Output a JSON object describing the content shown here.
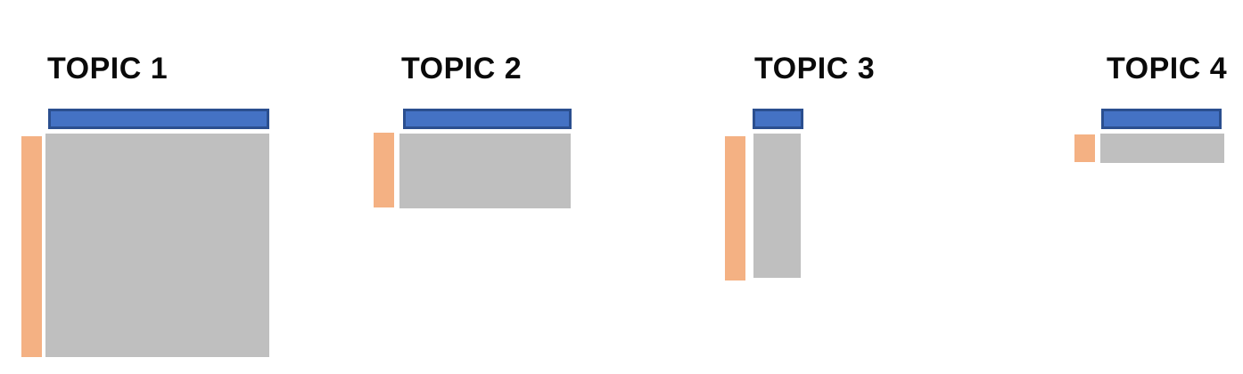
{
  "colors": {
    "header_bar": "#4472c4",
    "header_bar_border": "#2b4f8f",
    "row_bar": "#f4b183",
    "body_block": "#bfbfbf",
    "title_text": "#0a0a0a",
    "background": "#ffffff"
  },
  "topics": [
    {
      "title": "TOPIC 1"
    },
    {
      "title": "TOPIC 2"
    },
    {
      "title": "TOPIC 3"
    },
    {
      "title": "TOPIC 4"
    }
  ]
}
